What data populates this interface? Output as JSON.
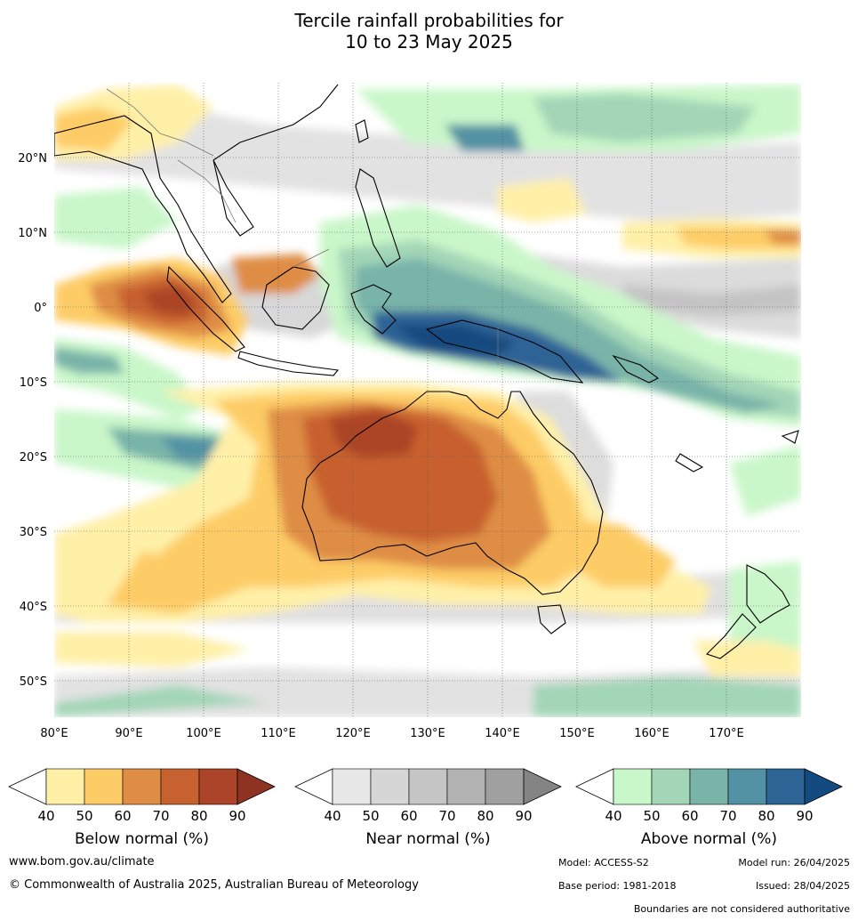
{
  "title_line1": "Tercile rainfall probabilities for",
  "title_line2": "10 to 23 May 2025",
  "map": {
    "lon_labels": [
      "80°E",
      "90°E",
      "100°E",
      "110°E",
      "120°E",
      "130°E",
      "140°E",
      "150°E",
      "160°E",
      "170°E"
    ],
    "lat_labels": [
      "20°N",
      "10°N",
      "0°",
      "10°S",
      "20°S",
      "30°S",
      "40°S",
      "50°S"
    ],
    "lon_range": [
      80,
      180
    ],
    "lat_range": [
      -55,
      30
    ]
  },
  "colorbars": [
    {
      "title": "Below normal (%)",
      "ticks": [
        "40",
        "50",
        "60",
        "70",
        "80",
        "90"
      ],
      "colors": [
        "#fff0a8",
        "#fdcc66",
        "#df8d45",
        "#c7612f",
        "#ab4428",
        "#8e3321"
      ]
    },
    {
      "title": "Near normal (%)",
      "ticks": [
        "40",
        "50",
        "60",
        "70",
        "80",
        "90"
      ],
      "colors": [
        "#e7e7e7",
        "#d6d6d6",
        "#c5c5c5",
        "#b3b3b3",
        "#a0a0a0",
        "#848484"
      ]
    },
    {
      "title": "Above normal (%)",
      "ticks": [
        "40",
        "50",
        "60",
        "70",
        "80",
        "90"
      ],
      "colors": [
        "#c9f7c9",
        "#a3d6b7",
        "#79b4a9",
        "#5292a4",
        "#2d6496",
        "#134a7f"
      ]
    }
  ],
  "footer": {
    "website": "www.bom.gov.au/climate",
    "copyright": "© Commonwealth of Australia 2025, Australian Bureau of Meteorology",
    "model": "Model: ACCESS-S2",
    "model_run": "Model run: 26/04/2025",
    "base_period": "Base period: 1981-2018",
    "issued": "Issued: 28/04/2025",
    "disclaimer": "Boundaries are not considered authoritative"
  }
}
